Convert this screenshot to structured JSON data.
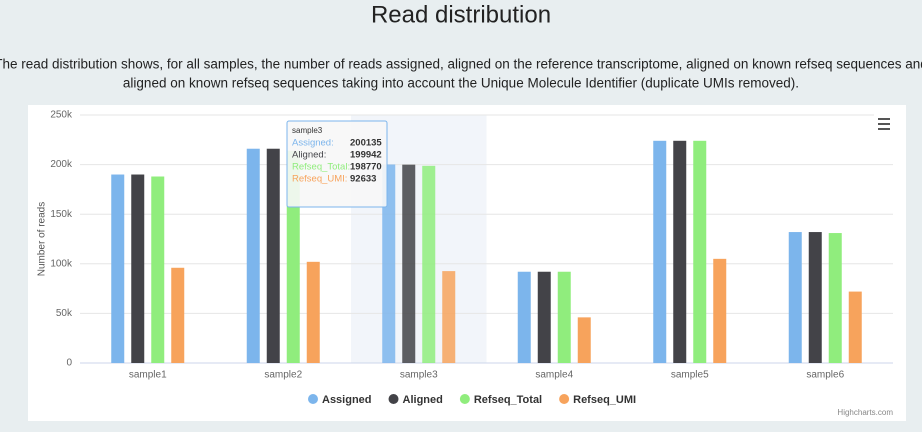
{
  "page_title": "Read distribution",
  "description": [
    "The read distribution shows, for all samples, the number of reads assigned, aligned on the reference transcriptome, aligned on known refseq sequences and",
    "aligned on known refseq sequences taking into account the Unique Molecule Identifier (duplicate UMIs removed)."
  ],
  "credits": "Highcharts.com",
  "chart_data": {
    "type": "bar",
    "y_label": "Number of reads",
    "categories": [
      "sample1",
      "sample2",
      "sample3",
      "sample4",
      "sample5",
      "sample6"
    ],
    "series": [
      {
        "name": "Assigned",
        "color": "#7cb5ec",
        "values": [
          190000,
          216000,
          200135,
          92000,
          224000,
          132000
        ]
      },
      {
        "name": "Aligned",
        "color": "#434348",
        "values": [
          190000,
          216000,
          199942,
          92000,
          224000,
          132000
        ]
      },
      {
        "name": "Refseq_Total",
        "color": "#90ed7d",
        "values": [
          188000,
          214000,
          198770,
          92000,
          224000,
          131000
        ]
      },
      {
        "name": "Refseq_UMI",
        "color": "#f7a35c",
        "values": [
          96000,
          102000,
          92633,
          46000,
          105000,
          72000
        ]
      }
    ],
    "ylim": [
      0,
      250000
    ],
    "yticks": [
      0,
      {
        "value": 50000,
        "label": "50k"
      },
      {
        "value": 100000,
        "label": "100k"
      },
      {
        "value": 150000,
        "label": "150k"
      },
      {
        "value": 200000,
        "label": "200k"
      },
      {
        "value": 250000,
        "label": "250k"
      }
    ],
    "grid": true,
    "tooltip": {
      "title": "sample3",
      "labels": [
        "Assigned:",
        "Aligned:",
        "Refseq_Total:",
        "Refseq_UMI:"
      ]
    }
  }
}
